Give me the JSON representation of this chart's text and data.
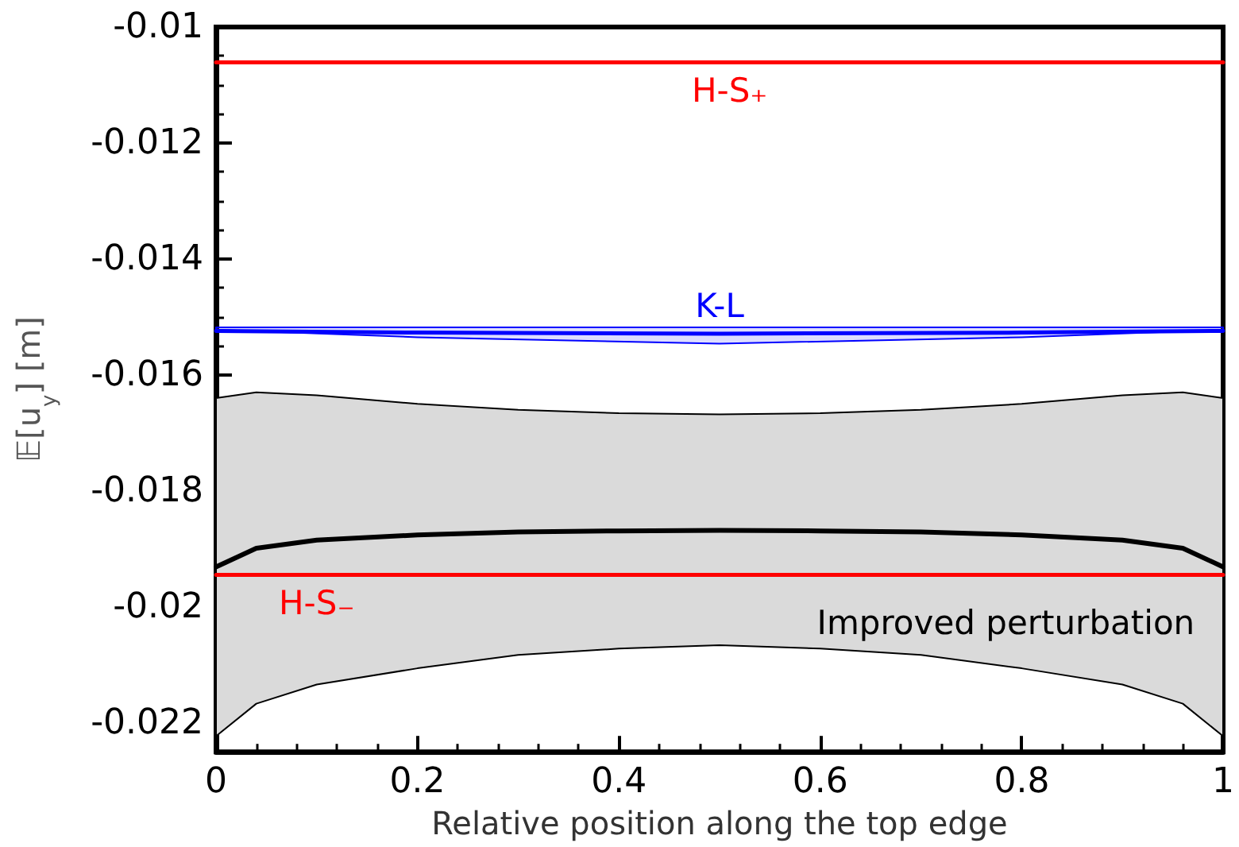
{
  "chart_data": {
    "type": "line",
    "xlabel": "Relative position along the top edge",
    "ylabel": "𝔼[u$_{y}$] [m]",
    "xlim": [
      0,
      1
    ],
    "xticks": [
      0,
      0.2,
      0.4,
      0.6,
      0.8,
      1
    ],
    "ylim": [
      -0.0225,
      -0.01
    ],
    "yticks": [
      -0.022,
      -0.02,
      -0.018,
      -0.016,
      -0.014,
      -0.012,
      -0.01
    ],
    "grid": false,
    "legend": false,
    "marker": "none",
    "line_style": "solid",
    "series": [
      {
        "name": "Improved perturbation",
        "color": "#000000",
        "x": [
          0,
          0.04,
          0.1,
          0.2,
          0.3,
          0.4,
          0.5,
          0.6,
          0.7,
          0.8,
          0.9,
          0.96,
          1
        ],
        "values": [
          -0.01931,
          -0.01899,
          -0.01885,
          -0.01876,
          -0.01871,
          -0.01869,
          -0.01868,
          -0.01869,
          -0.01871,
          -0.01876,
          -0.01885,
          -0.01899,
          -0.01931
        ],
        "lower": [
          -0.02223,
          -0.02167,
          -0.02134,
          -0.02106,
          -0.02083,
          -0.02072,
          -0.02066,
          -0.02072,
          -0.02083,
          -0.02106,
          -0.02134,
          -0.02167,
          -0.02223
        ],
        "upper": [
          -0.0164,
          -0.0163,
          -0.01635,
          -0.0165,
          -0.0166,
          -0.01666,
          -0.01668,
          -0.01666,
          -0.0166,
          -0.0165,
          -0.01635,
          -0.0163,
          -0.0164
        ]
      },
      {
        "name": "K-L",
        "color": "#0000ff",
        "x": [
          0,
          0.2,
          0.5,
          0.8,
          1
        ],
        "values": [
          -0.01524,
          -0.01527,
          -0.01529,
          -0.01527,
          -0.01524
        ],
        "lower": [
          -0.01522,
          -0.01535,
          -0.01546,
          -0.01535,
          -0.01522
        ],
        "upper": [
          -0.01518,
          -0.01518,
          -0.01518,
          -0.01518,
          -0.01518
        ]
      },
      {
        "name": "H-S₊",
        "color": "#ff0000",
        "x": [
          0,
          0.51,
          1
        ],
        "values": [
          -0.01061,
          -0.01061,
          -0.01061
        ]
      },
      {
        "name": "H-S₋",
        "color": "#ff0000",
        "x": [
          0,
          0.1,
          1
        ],
        "values": [
          -0.01945,
          -0.01945,
          -0.01945
        ]
      }
    ]
  }
}
